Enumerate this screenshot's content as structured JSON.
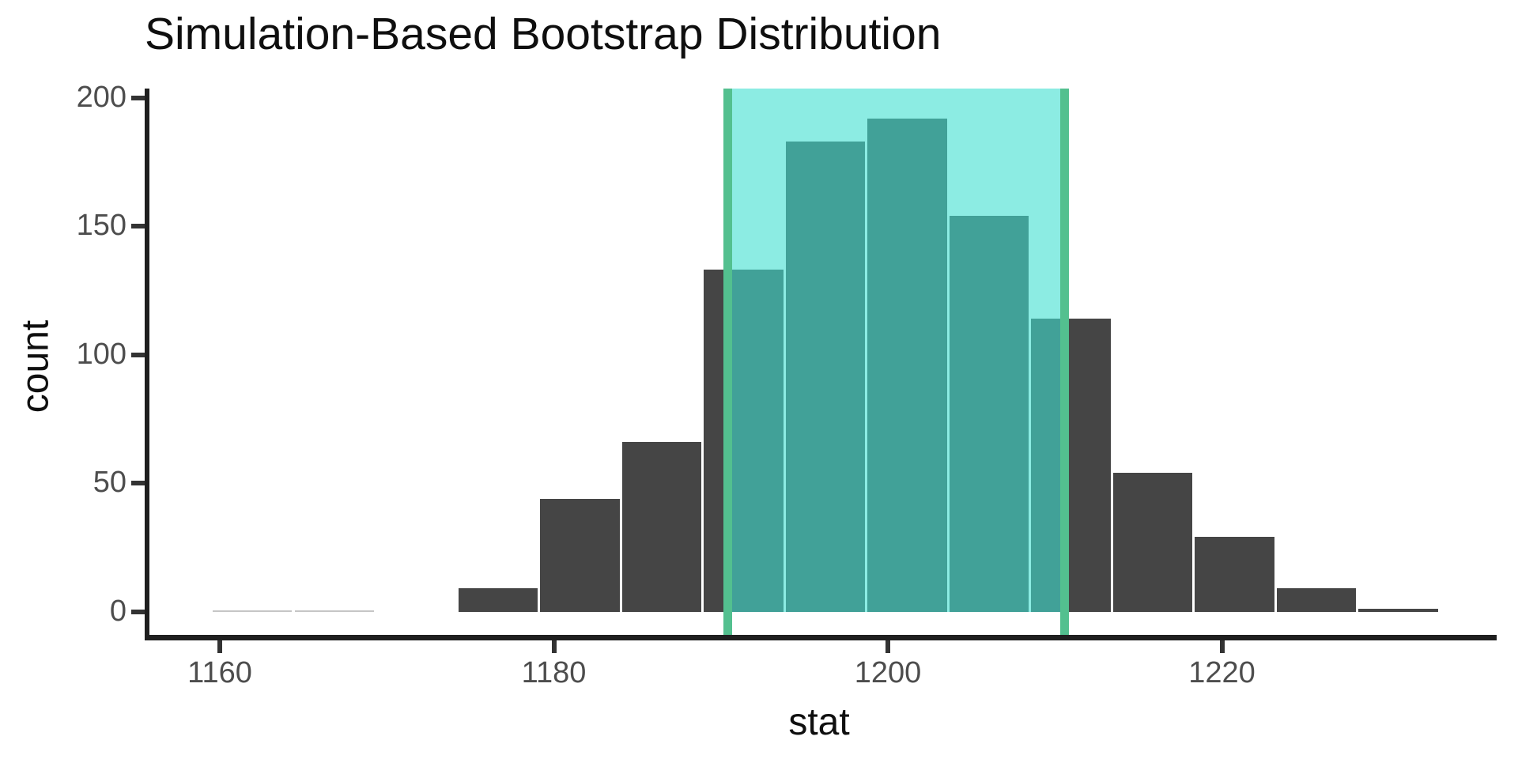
{
  "chart_data": {
    "type": "bar",
    "subtype": "histogram",
    "title": "Simulation-Based Bootstrap Distribution",
    "xlabel": "stat",
    "ylabel": "count",
    "x_ticks": [
      1160,
      1180,
      1200,
      1220
    ],
    "y_ticks": [
      0,
      50,
      100,
      150,
      200
    ],
    "xlim": [
      1155.6,
      1236.5
    ],
    "ylim": [
      -10,
      203.5
    ],
    "grid": "off",
    "legend": "none",
    "bin_width": 4.9,
    "bin_edges": [
      1159.5,
      1164.4,
      1169.3,
      1174.2,
      1179.1,
      1184.0,
      1188.9,
      1193.8,
      1198.7,
      1203.6,
      1208.5,
      1213.4,
      1218.3,
      1223.2,
      1228.1,
      1233.0
    ],
    "counts": [
      1,
      1,
      0,
      9,
      44,
      66,
      133,
      183,
      192,
      154,
      114,
      54,
      29,
      9,
      1
    ],
    "confidence_interval": {
      "lower": 1190.4,
      "upper": 1210.6
    },
    "faint_bar_indices": [
      0,
      1
    ],
    "colors": {
      "bar": "#454545",
      "faint_bar": "#c6c6c6",
      "ci_band": "rgba(64,224,208,0.6)",
      "ci_line": "#53c08f",
      "axis_line": "#1f1f1f",
      "tick_mark": "#333333",
      "tick_label": "#4d4d4d",
      "text": "#0f0f0f",
      "background": "#ffffff"
    }
  }
}
